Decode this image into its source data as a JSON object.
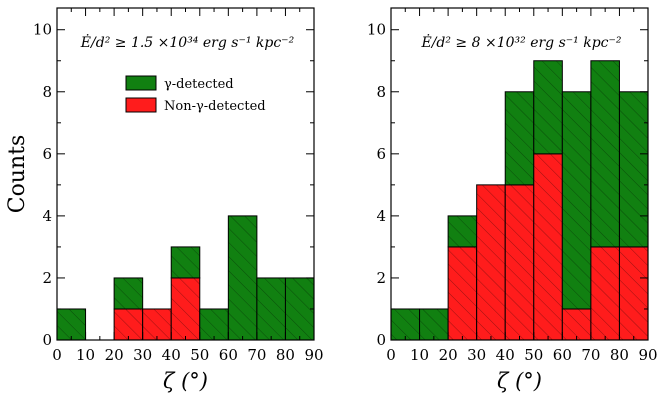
{
  "chart_data": [
    {
      "type": "bar",
      "stacked": true,
      "bin_edges": [
        0,
        10,
        20,
        30,
        40,
        50,
        60,
        70,
        80,
        90
      ],
      "series": [
        {
          "name": "γ-detected",
          "color": "#118011",
          "values": [
            1,
            0,
            1,
            0,
            1,
            1,
            4,
            2,
            2
          ]
        },
        {
          "name": "Non-γ-detected",
          "color": "#ff1c1c",
          "values": [
            0,
            0,
            1,
            1,
            2,
            0,
            0,
            0,
            0
          ]
        }
      ],
      "xlabel": "ζ (°)",
      "ylabel": "Counts",
      "xlim": [
        0,
        90
      ],
      "ylim": [
        0,
        10.7
      ],
      "xticks": [
        "0",
        "10",
        "20",
        "30",
        "40",
        "50",
        "60",
        "70",
        "80",
        "90"
      ],
      "yticks": [
        "0",
        "2",
        "4",
        "6",
        "8",
        "10"
      ],
      "annotation": "Ė/d² ≥ 1.5 ×10³⁴ erg s⁻¹ kpc⁻²",
      "legend": "upper-center"
    },
    {
      "type": "bar",
      "stacked": true,
      "bin_edges": [
        0,
        10,
        20,
        30,
        40,
        50,
        60,
        70,
        80,
        90
      ],
      "series": [
        {
          "name": "γ-detected",
          "color": "#118011",
          "values": [
            1,
            1,
            1,
            0,
            3,
            3,
            7,
            6,
            5
          ]
        },
        {
          "name": "Non-γ-detected",
          "color": "#ff1c1c",
          "values": [
            0,
            0,
            3,
            5,
            5,
            6,
            1,
            3,
            3
          ]
        }
      ],
      "xlabel": "ζ (°)",
      "ylabel": "",
      "xlim": [
        0,
        90
      ],
      "ylim": [
        0,
        10.7
      ],
      "xticks": [
        "0",
        "10",
        "20",
        "30",
        "40",
        "50",
        "60",
        "70",
        "80",
        "90"
      ],
      "yticks": [
        "0",
        "2",
        "4",
        "6",
        "8",
        "10"
      ],
      "annotation": "Ė/d² ≥ 8 ×10³² erg s⁻¹ kpc⁻²",
      "legend": "none"
    }
  ]
}
